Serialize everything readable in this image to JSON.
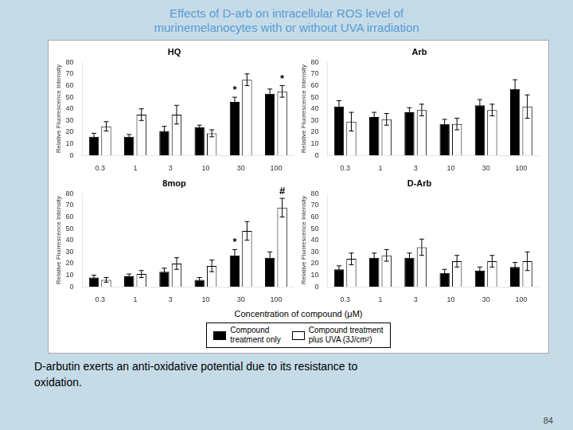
{
  "title": "Effects of D-arb on intracellular ROS level of\nmurinemelanocytes with or without UVA irradiation",
  "xlabel": "Concentration of compound (μM)",
  "legend": "bottom",
  "annotations": [
    "D-arbutin exerts an anti-oxidative potential due to its resistance to",
    "oxidation."
  ],
  "page_number": "84",
  "chart_data": [
    {
      "type": "bar",
      "title": "HQ",
      "ylabel": "Relative Fluorescence Intensity",
      "categories": [
        "0.3",
        "1",
        "3",
        "10",
        "30",
        "100"
      ],
      "series": [
        {
          "name": "Compound\ntreatment only",
          "color": "#000000",
          "values": [
            16,
            16,
            21,
            24,
            46,
            53
          ],
          "errors": [
            3,
            2,
            4,
            2,
            4,
            4
          ]
        },
        {
          "name": "Compound treatment\nplus UVA (3J/cm²)",
          "color": "#ffffff",
          "values": [
            25,
            35,
            35,
            19,
            65,
            55
          ],
          "errors": [
            4,
            5,
            8,
            3,
            5,
            5
          ]
        }
      ],
      "ylim": [
        0,
        80
      ],
      "yticks": [
        0,
        10,
        20,
        30,
        40,
        50,
        60,
        70,
        80
      ],
      "grid": false,
      "annotations": [
        {
          "category": "30",
          "series": "Compound\ntreatment only",
          "text": "*"
        },
        {
          "category": "100",
          "series": "Compound treatment\nplus UVA (3J/cm²)",
          "text": "*"
        }
      ]
    },
    {
      "type": "bar",
      "title": "Arb",
      "ylabel": "Relative Fluorescence Intensity",
      "categories": [
        "0.3",
        "1",
        "3",
        "10",
        "30",
        "100"
      ],
      "series": [
        {
          "name": "Compound\ntreatment only",
          "color": "#000000",
          "values": [
            42,
            33,
            37,
            27,
            43,
            57
          ],
          "errors": [
            5,
            4,
            4,
            4,
            5,
            8
          ]
        },
        {
          "name": "Compound treatment\nplus UVA (3J/cm²)",
          "color": "#ffffff",
          "values": [
            29,
            31,
            39,
            27,
            39,
            42
          ],
          "errors": [
            8,
            5,
            5,
            5,
            5,
            10
          ]
        }
      ],
      "ylim": [
        0,
        80
      ],
      "yticks": [
        0,
        10,
        20,
        30,
        40,
        50,
        60,
        70,
        80
      ],
      "grid": false
    },
    {
      "type": "bar",
      "title": "8mop",
      "ylabel": "Relative Fluorescence Intensity",
      "categories": [
        "0.3",
        "1",
        "3",
        "10",
        "30",
        "100"
      ],
      "series": [
        {
          "name": "Compound\ntreatment only",
          "color": "#000000",
          "values": [
            8,
            9,
            13,
            6,
            27,
            25
          ],
          "errors": [
            2,
            2,
            3,
            2,
            5,
            5
          ]
        },
        {
          "name": "Compound treatment\nplus UVA (3J/cm²)",
          "color": "#ffffff",
          "values": [
            6,
            11,
            20,
            18,
            48,
            68
          ],
          "errors": [
            2,
            3,
            5,
            5,
            8,
            8
          ]
        }
      ],
      "ylim": [
        0,
        80
      ],
      "yticks": [
        0,
        10,
        20,
        30,
        40,
        50,
        60,
        70,
        80
      ],
      "grid": false,
      "annotations": [
        {
          "category": "30",
          "series": "Compound\ntreatment only",
          "text": "*"
        },
        {
          "category": "100",
          "series": "Compound treatment\nplus UVA (3J/cm²)",
          "text": "#"
        }
      ]
    },
    {
      "type": "bar",
      "title": "D-Arb",
      "ylabel": "Relative Fluorescence Intensity",
      "categories": [
        "0.3",
        "1",
        "3",
        "10",
        "30",
        "100"
      ],
      "series": [
        {
          "name": "Compound\ntreatment only",
          "color": "#000000",
          "values": [
            15,
            25,
            25,
            12,
            14,
            17
          ],
          "errors": [
            3,
            4,
            4,
            3,
            3,
            4
          ]
        },
        {
          "name": "Compound treatment\nplus UVA (3J/cm²)",
          "color": "#ffffff",
          "values": [
            24,
            27,
            34,
            22,
            22,
            22
          ],
          "errors": [
            5,
            5,
            7,
            5,
            5,
            8
          ]
        }
      ],
      "ylim": [
        0,
        80
      ],
      "yticks": [
        0,
        10,
        20,
        30,
        40,
        50,
        60,
        70,
        80
      ],
      "grid": false
    }
  ]
}
